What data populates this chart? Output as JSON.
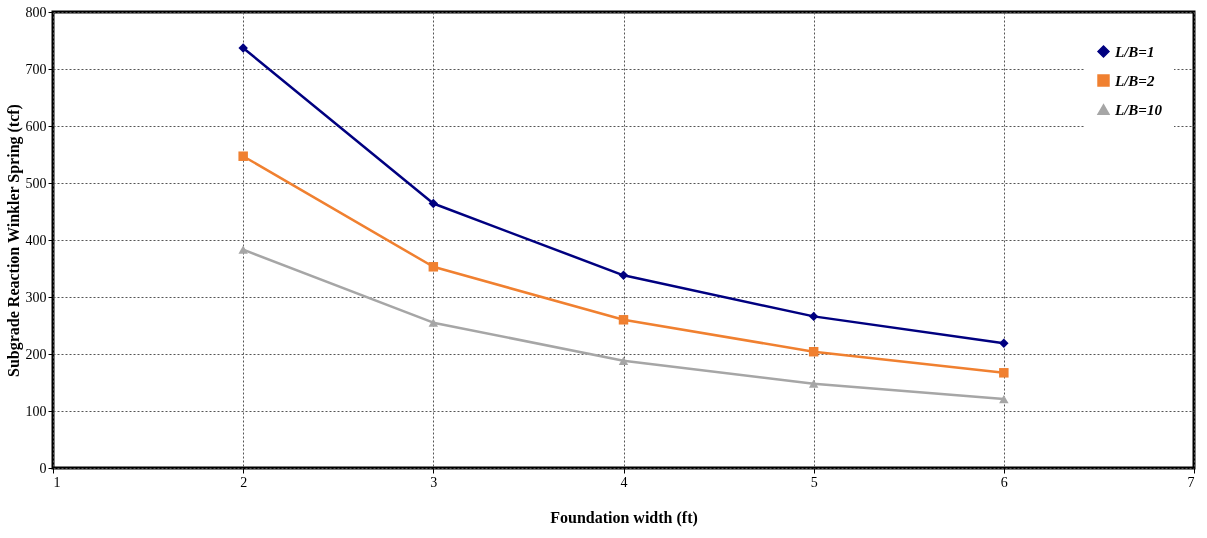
{
  "chart_data": {
    "type": "line",
    "xlabel": "Foundation width (ft)",
    "ylabel": "Subgrade Reaction Winkler Spring (tcf)",
    "x": [
      2,
      3,
      4,
      5,
      6
    ],
    "series": [
      {
        "name": "L/B=1",
        "color": "#000080",
        "marker": "diamond",
        "values": [
          737,
          464,
          338,
          266,
          219
        ]
      },
      {
        "name": "L/B=2",
        "color": "#f08030",
        "marker": "square",
        "values": [
          547,
          353,
          260,
          204,
          167
        ]
      },
      {
        "name": "L/B=10",
        "color": "#a6a6a6",
        "marker": "triangle",
        "values": [
          383,
          255,
          188,
          148,
          121
        ]
      }
    ],
    "xlim": [
      1,
      7
    ],
    "xticks": [
      1,
      2,
      3,
      4,
      5,
      6,
      7
    ],
    "ylim": [
      0,
      800
    ],
    "yticks": [
      0,
      100,
      200,
      300,
      400,
      500,
      600,
      700,
      800
    ],
    "grid": true,
    "legend": "top right",
    "line_style": "solid"
  }
}
